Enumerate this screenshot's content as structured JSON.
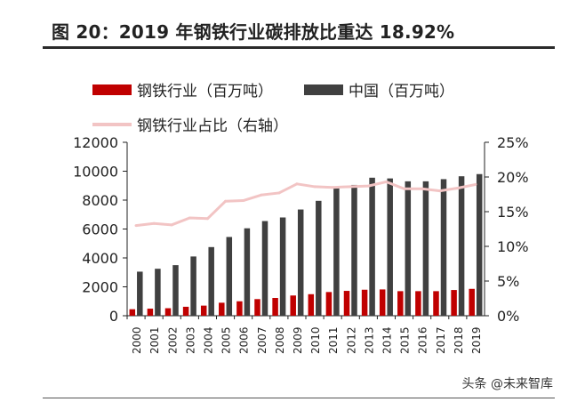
{
  "header": {
    "title": "图 20：2019 年钢铁行业碳排放比重达 18.92%"
  },
  "watermark": "头条 @未来智库",
  "colors": {
    "steel": "#c00000",
    "china": "#404040",
    "share": "#f2c4c4"
  },
  "chart_data": {
    "type": "bar",
    "categories": [
      "2000",
      "2001",
      "2002",
      "2003",
      "2004",
      "2005",
      "2006",
      "2007",
      "2008",
      "2009",
      "2010",
      "2011",
      "2012",
      "2013",
      "2014",
      "2015",
      "2016",
      "2017",
      "2018",
      "2019"
    ],
    "series": [
      {
        "name": "钢铁行业（百万吨）",
        "type": "bar",
        "axis": "left",
        "values": [
          450,
          490,
          520,
          620,
          700,
          900,
          1000,
          1150,
          1230,
          1400,
          1490,
          1640,
          1720,
          1800,
          1820,
          1700,
          1700,
          1700,
          1780,
          1860
        ]
      },
      {
        "name": "中国（百万吨）",
        "type": "bar",
        "axis": "left",
        "values": [
          3050,
          3250,
          3500,
          4100,
          4750,
          5450,
          6050,
          6550,
          6800,
          7350,
          7950,
          8900,
          9050,
          9550,
          9500,
          9300,
          9300,
          9450,
          9650,
          9800
        ]
      },
      {
        "name": "钢铁行业占比（右轴）",
        "type": "line",
        "axis": "right",
        "values": [
          13.0,
          13.3,
          13.1,
          14.1,
          14.0,
          16.5,
          16.6,
          17.4,
          17.7,
          19.0,
          18.6,
          18.5,
          18.6,
          18.7,
          19.3,
          18.3,
          18.3,
          18.0,
          18.4,
          18.92
        ]
      }
    ],
    "yAxisLeft": {
      "min": 0,
      "max": 12000,
      "ticks": [
        "0",
        "2000",
        "4000",
        "6000",
        "8000",
        "10000",
        "12000"
      ]
    },
    "yAxisRight": {
      "min": 0,
      "max": 25,
      "ticks": [
        "0%",
        "5%",
        "10%",
        "15%",
        "20%",
        "25%"
      ]
    },
    "legend": "top",
    "grid": false
  }
}
